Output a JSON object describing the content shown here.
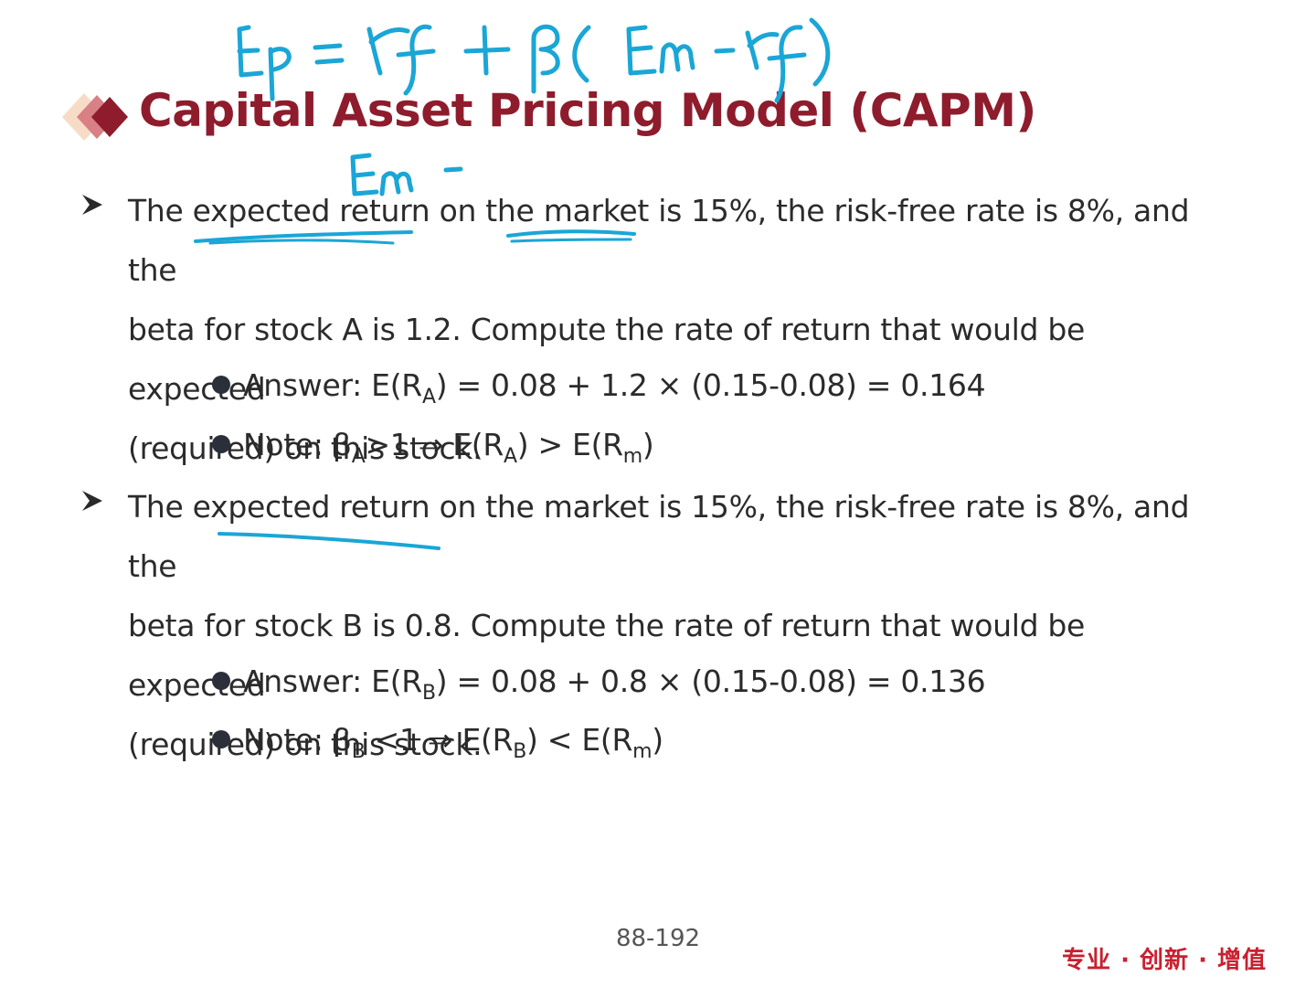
{
  "title": "Capital Asset Pricing Model (CAPM)",
  "paragraph1": {
    "line1": "The expected return on the market is 15%, the risk-free rate is 8%, and the",
    "line2": "beta for stock A is 1.2. Compute the rate of return that would be expected",
    "line3": "(required) on this stock."
  },
  "answer1": {
    "pre": "Answer: E(R",
    "sub": "A",
    "post": ") = 0.08 + 1.2 × (0.15-0.08) = 0.164"
  },
  "note1": {
    "pre": "Note: β",
    "sub1": "A",
    "mid": ">1 ⇒ E(R",
    "sub2": "A",
    "mid2": ") > E(R",
    "sub3": "m",
    "post": ")"
  },
  "paragraph2": {
    "line1": "The expected return on the market is 15%, the risk-free rate is 8%, and the",
    "line2": "beta for stock B is 0.8. Compute the rate of return that would be expected",
    "line3": "(required) on this stock."
  },
  "answer2": {
    "pre": "Answer: E(R",
    "sub": "B",
    "post": ") = 0.08 + 0.8 × (0.15-0.08) = 0.136"
  },
  "note2": {
    "pre": "Note: β",
    "sub1": "B",
    "mid": " <1 ⇒ E(R",
    "sub2": "B",
    "mid2": ") < E(R",
    "sub3": "m",
    "post": ")"
  },
  "page_number": "88-192",
  "slogan": "专业 · 创新 · 增值",
  "handwriting": {
    "formula": "Ep = rf + β( Em - rf)",
    "annotation": "Em -"
  },
  "colors": {
    "title": "#8e1c2c",
    "ink": "#1aa6d6",
    "slogan": "#c8202f"
  }
}
